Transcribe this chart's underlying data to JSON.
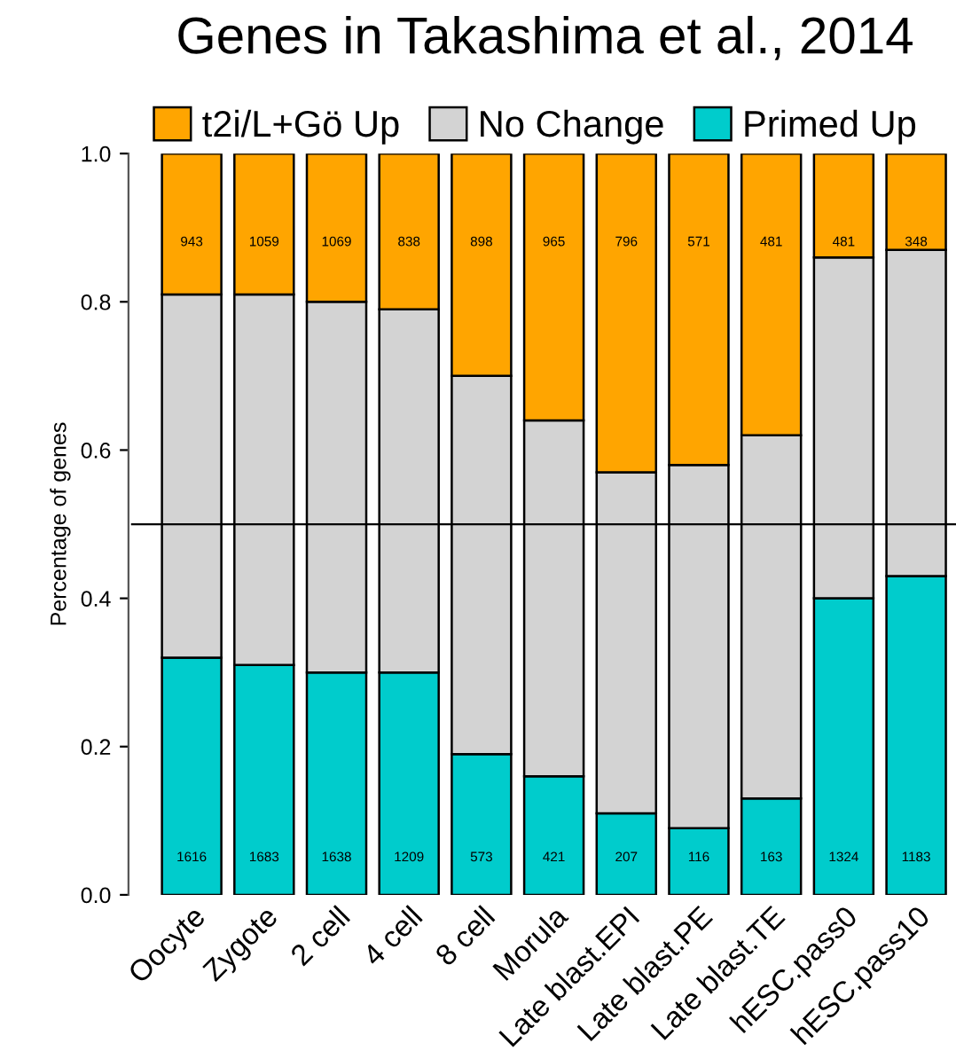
{
  "chart_data": {
    "type": "bar",
    "title": "Genes in Takashima et al., 2014",
    "ylabel": "Percentage of genes",
    "stacked": true,
    "legend": "top",
    "grid": false,
    "categories": [
      "Oocyte",
      "Zygote",
      "2 cell",
      "4 cell",
      "8 cell",
      "Morula",
      "Late blast.EPI",
      "Late blast.PE",
      "Late blast.TE",
      "hESC.pass0",
      "hESC.pass10"
    ],
    "series": [
      {
        "name": "Primed Up",
        "color": "#00cccc",
        "values": [
          0.32,
          0.31,
          0.3,
          0.3,
          0.19,
          0.16,
          0.11,
          0.09,
          0.13,
          0.4,
          0.43
        ]
      },
      {
        "name": "No Change",
        "color": "#d3d3d3",
        "values": [
          0.49,
          0.5,
          0.5,
          0.49,
          0.51,
          0.48,
          0.46,
          0.49,
          0.49,
          0.46,
          0.44
        ]
      },
      {
        "name": "t2i/L+Gö Up",
        "color": "#ffa500",
        "values": [
          0.19,
          0.19,
          0.2,
          0.21,
          0.3,
          0.36,
          0.43,
          0.42,
          0.38,
          0.14,
          0.13
        ]
      }
    ],
    "annotations": [
      "1616",
      "1683",
      "1638",
      "1209",
      "573",
      "421",
      "207",
      "116",
      "163",
      "1324",
      "1183",
      "943",
      "1059",
      "1069",
      "838",
      "898",
      "965",
      "796",
      "571",
      "481",
      "481",
      "348"
    ],
    "ylim": [
      0,
      1
    ],
    "yticks": [
      {
        "value": 0,
        "label": "0.0"
      },
      0.2,
      0.4,
      0.6,
      0.8,
      {
        "value": 1,
        "label": "1.0"
      }
    ],
    "ref_lines": [
      {
        "axis": "y",
        "value": 0.5,
        "color": "#000000"
      }
    ]
  }
}
